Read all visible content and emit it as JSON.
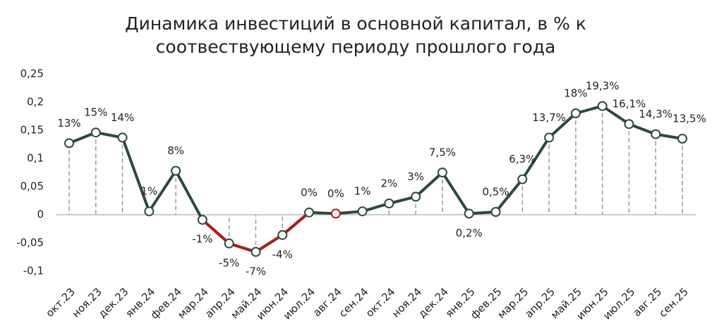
{
  "chart_data": {
    "type": "line",
    "title": [
      "Динамика инвестиций в основной капитал, в % к",
      "соотвествующему периоду прошлого года"
    ],
    "categories": [
      "окт.23",
      "ноя.23",
      "дек.23",
      "янв.24",
      "фев.24",
      "мар.24",
      "апр.24",
      "май.24",
      "июн.24",
      "июл.24",
      "авг.24",
      "сен.24",
      "окт.24",
      "ноя.24",
      "дек.24",
      "янв.25",
      "фев.25",
      "мар.25",
      "апр.25",
      "май.25",
      "июн.25",
      "июл.25",
      "авг.25",
      "сен.25"
    ],
    "series": [
      {
        "color": "#2d4a3a",
        "highlight_color": "#b01c1c",
        "highlight": [
          5,
          10
        ],
        "values": [
          0.127,
          0.146,
          0.137,
          0.006,
          0.078,
          -0.009,
          -0.051,
          -0.066,
          -0.036,
          0.004,
          0.002,
          0.006,
          0.02,
          0.032,
          0.075,
          0.002,
          0.005,
          0.063,
          0.137,
          0.18,
          0.193,
          0.161,
          0.143,
          0.135
        ],
        "value_labels": [
          "13%",
          "15%",
          "14%",
          "1%",
          "8%",
          "-1%",
          "-5%",
          "-7%",
          "-4%",
          "0%",
          "0%",
          "1%",
          "2%",
          "3%",
          "7,5%",
          "0,2%",
          "0,5%",
          "6,3%",
          "13,7%",
          "18%",
          "19,3%",
          "16,1%",
          "14,3%",
          "13,5%"
        ]
      }
    ],
    "ylim": [
      -0.1,
      0.25
    ],
    "yticks": [
      {
        "value": -0.1,
        "label": "-0,1"
      },
      {
        "value": -0.05,
        "label": "-0,05"
      },
      0,
      {
        "value": 0.05,
        "label": "0,05"
      },
      {
        "value": 0.1,
        "label": "0,1"
      },
      {
        "value": 0.15,
        "label": "0,15"
      },
      {
        "value": 0.2,
        "label": "0,2"
      },
      {
        "value": 0.25,
        "label": "0,25"
      }
    ],
    "drop_lines": true
  }
}
